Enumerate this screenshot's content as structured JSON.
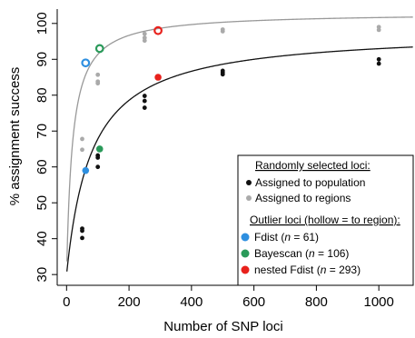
{
  "chart_data": {
    "type": "scatter",
    "xlabel": "Number of SNP loci",
    "ylabel": "% assignment success",
    "xlim": [
      -30,
      1110
    ],
    "ylim": [
      27,
      104
    ],
    "xticks": [
      0,
      200,
      400,
      600,
      800,
      1000
    ],
    "yticks": [
      30,
      40,
      50,
      60,
      70,
      80,
      90,
      100
    ],
    "grid": false,
    "legend_placement": "bottom-right",
    "series": [
      {
        "name": "Assigned to population",
        "color": "#111111",
        "marker": "filled",
        "points": [
          [
            50,
            42.8
          ],
          [
            50,
            42.2
          ],
          [
            50,
            40.2
          ],
          [
            100,
            63.2
          ],
          [
            100,
            62.6
          ],
          [
            100,
            60.0
          ],
          [
            250,
            79.8
          ],
          [
            250,
            78.4
          ],
          [
            250,
            76.5
          ],
          [
            500,
            86.8
          ],
          [
            500,
            86.3
          ],
          [
            500,
            85.8
          ],
          [
            1000,
            90.0
          ],
          [
            1000,
            88.8
          ]
        ]
      },
      {
        "name": "Assigned to regions",
        "color": "#aaaaaa",
        "marker": "filled",
        "points": [
          [
            50,
            67.8
          ],
          [
            50,
            64.8
          ],
          [
            100,
            85.7
          ],
          [
            100,
            83.8
          ],
          [
            100,
            83.3
          ],
          [
            250,
            97.1
          ],
          [
            250,
            96.0
          ],
          [
            250,
            95.2
          ],
          [
            500,
            98.3
          ],
          [
            500,
            97.8
          ],
          [
            1000,
            99.0
          ],
          [
            1000,
            98.2
          ]
        ]
      },
      {
        "name": "Fdist (n = 61)",
        "color": "#2e8fe0",
        "points": [
          {
            "x": 61,
            "y": 59,
            "hollow": false
          },
          {
            "x": 61,
            "y": 89,
            "hollow": true
          }
        ]
      },
      {
        "name": "Bayescan (n = 106)",
        "color": "#2a9a5a",
        "points": [
          {
            "x": 106,
            "y": 65,
            "hollow": false
          },
          {
            "x": 106,
            "y": 93,
            "hollow": true
          }
        ]
      },
      {
        "name": "nested Fdist (n = 293)",
        "color": "#e8211c",
        "points": [
          {
            "x": 293,
            "y": 85,
            "hollow": false
          },
          {
            "x": 293,
            "y": 98,
            "hollow": true
          }
        ]
      }
    ],
    "curves": [
      {
        "color": "#111111",
        "asymptote": 98,
        "half": 80,
        "offset": 30
      },
      {
        "color": "#999999",
        "asymptote": 103,
        "half": 19,
        "offset": 30
      }
    ],
    "legend": {
      "heading1": "Randomly selected loci:",
      "item_pop": "Assigned to population",
      "item_reg": "Assigned to regions",
      "heading2": "Outlier loci (hollow = to region):",
      "fdist_prefix": "Fdist (",
      "fdist_n": "n",
      "fdist_suffix": " = 61)",
      "bayes_prefix": "Bayescan (",
      "bayes_n": "n",
      "bayes_suffix": " = 106)",
      "nested_prefix": "nested Fdist (",
      "nested_n": "n",
      "nested_suffix": " = 293)"
    }
  }
}
